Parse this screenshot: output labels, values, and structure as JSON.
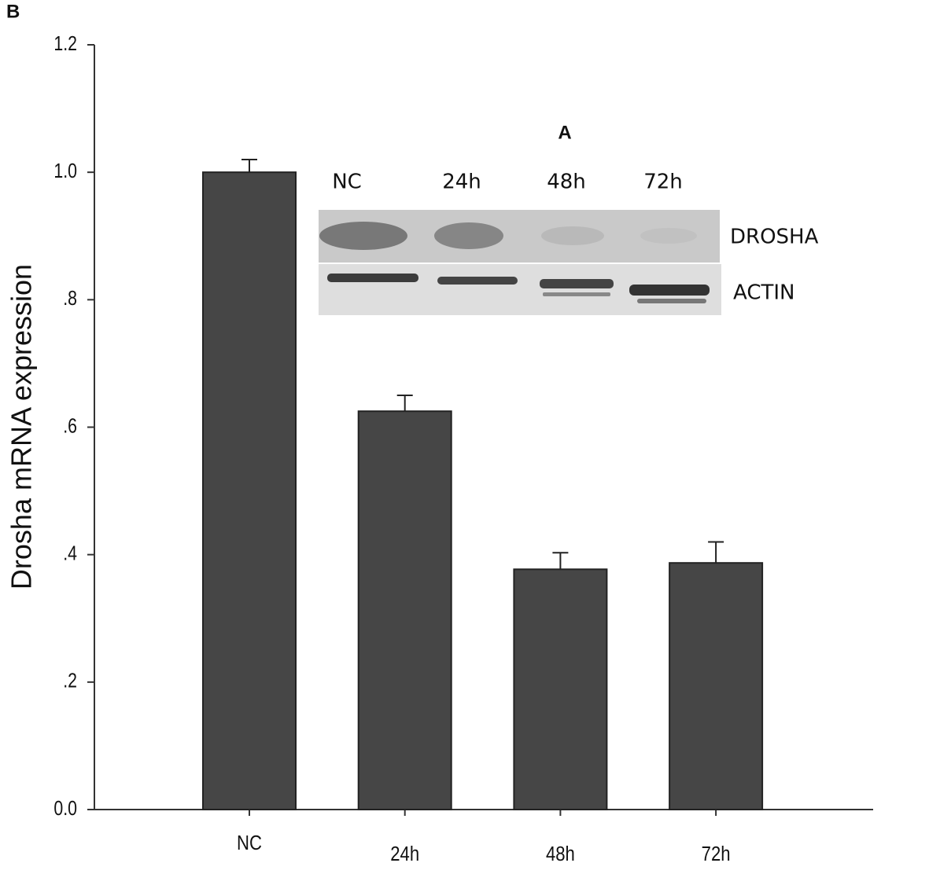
{
  "panel_labels": [
    "B"
  ],
  "chart_data": {
    "type": "bar",
    "ylabel": "Drosha mRNA expression",
    "categories": [
      "NC",
      "24h",
      "48h",
      "72h"
    ],
    "values": [
      1.0,
      0.625,
      0.377,
      0.387
    ],
    "errors": [
      0.02,
      0.025,
      0.026,
      0.033
    ],
    "color": "#464646",
    "ylim": [
      0,
      1.2
    ],
    "yticks": [
      {
        "value": 0,
        "label": "0.0"
      },
      {
        "value": 0.2,
        "label": ".2"
      },
      {
        "value": 0.4,
        "label": ".4"
      },
      {
        "value": 0.6,
        "label": ".6"
      },
      {
        "value": 0.8,
        "label": ".8"
      },
      {
        "value": 1.0,
        "label": "1.0"
      },
      1.2
    ],
    "grid": false
  },
  "inset": {
    "title": "A",
    "lanes": [
      "NC",
      "24h",
      "48h",
      "72h"
    ],
    "bands": [
      "DROSHA",
      "ACTIN"
    ]
  }
}
